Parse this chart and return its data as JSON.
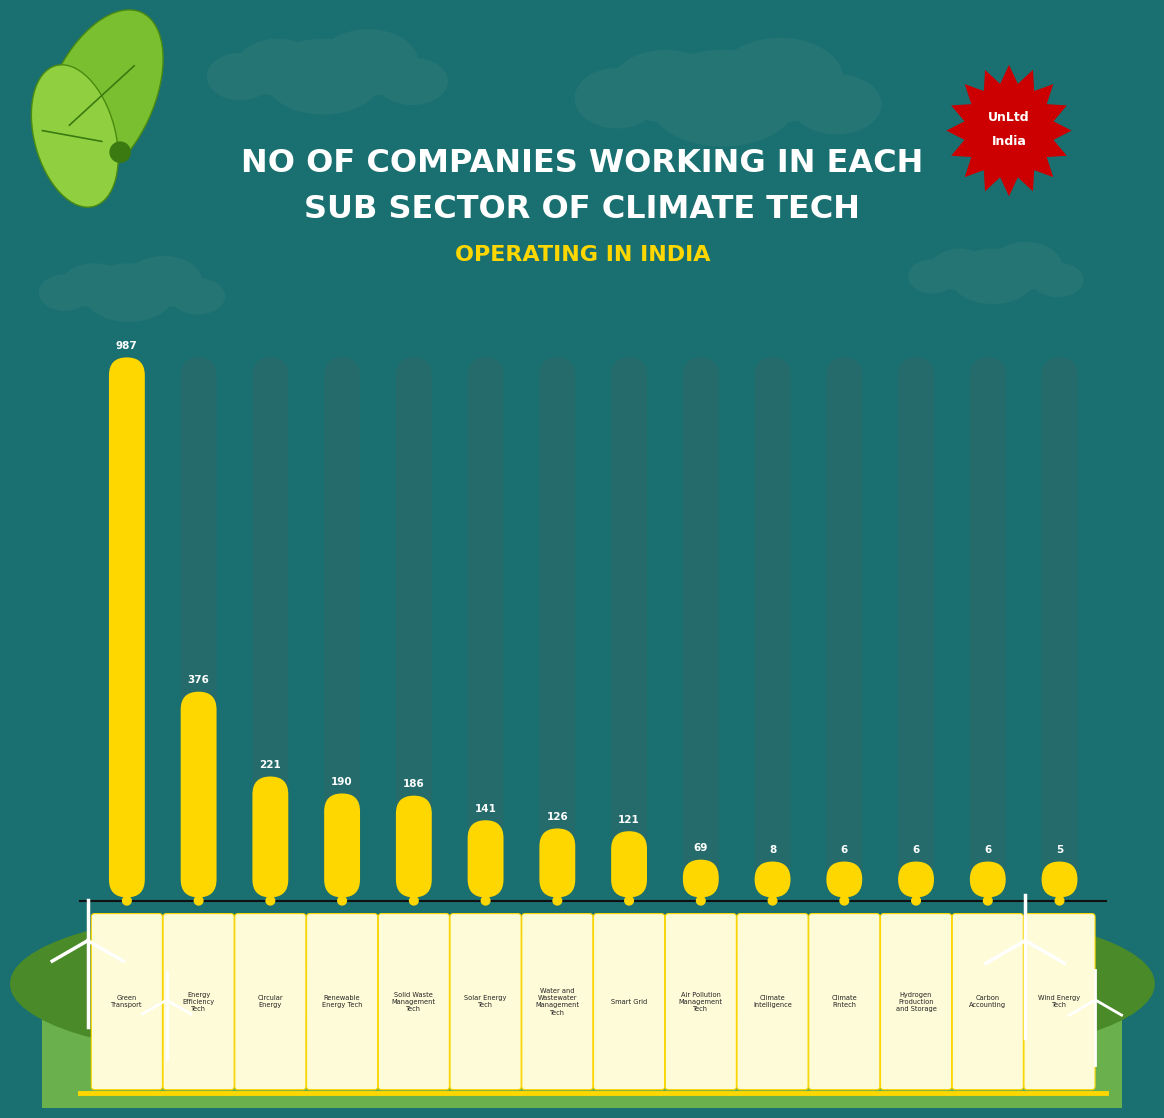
{
  "title_line1": "NO OF COMPANIES WORKING IN EACH",
  "title_line2": "SUB SECTOR OF CLIMATE TECH",
  "subtitle": "OPERATING IN INDIA",
  "categories": [
    "Green\nTransport",
    "Energy\nEfficiency\nTech",
    "Circular\nEnergy",
    "Renewable\nEnergy Tech",
    "Solid Waste\nManagement\nTech",
    "Solar Energy\nTech",
    "Water and\nWastewater\nManagement\nTech",
    "Smart Grid",
    "Air Pollution\nManagement\nTech",
    "Climate\nIntelligence",
    "Climate\nFintech",
    "Hydrogen\nProduction\nand Storage",
    "Carbon\nAccounting",
    "Wind Energy\nTech"
  ],
  "values": [
    987,
    376,
    221,
    190,
    186,
    141,
    126,
    121,
    69,
    8,
    6,
    6,
    6,
    5
  ],
  "bar_color": "#FFD700",
  "background_color": "#1a7070",
  "bar_bg_color": "#256b6b",
  "value_color": "#FFFFFF",
  "title_color": "#FFFFFF",
  "subtitle_color": "#FFD700",
  "label_bg_color": "#FEFBD8",
  "label_text_color": "#222222",
  "ground_green": "#6ab04c",
  "ground_dark": "#4a8a28",
  "ground_mid": "#5aa038",
  "cloud_color": "#257575"
}
